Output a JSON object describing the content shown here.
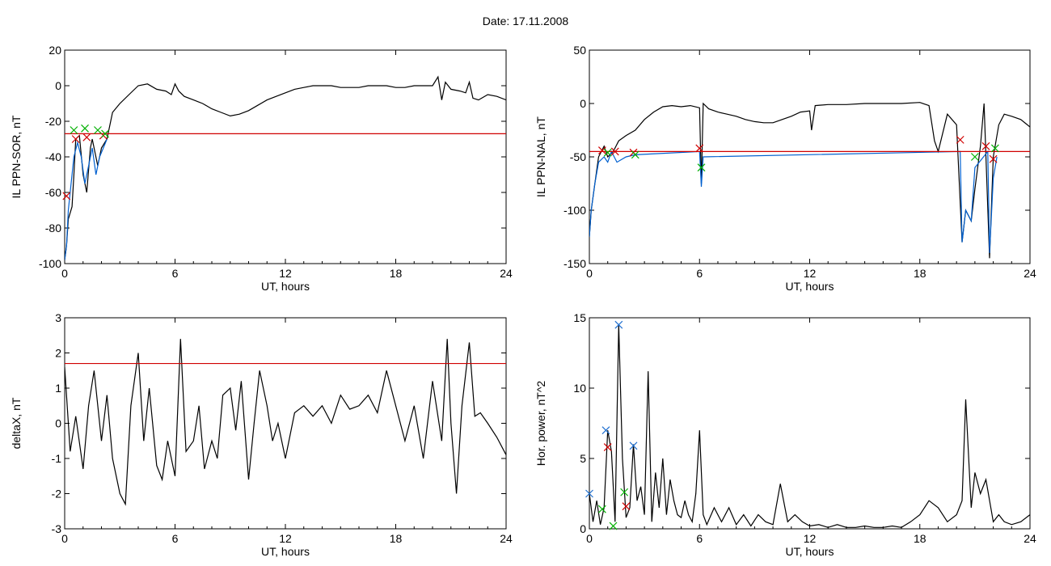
{
  "page": {
    "title": "Date:  17.11.2008"
  },
  "chart_data": [
    {
      "type": "line",
      "xlabel": "UT, hours",
      "ylabel": "IL PPN-SOR, nT",
      "xlim": [
        0,
        24
      ],
      "ylim": [
        -100,
        20
      ],
      "xticks": [
        0,
        6,
        12,
        18,
        24
      ],
      "yticks": [
        -100,
        -80,
        -60,
        -40,
        -20,
        0,
        20
      ],
      "threshold": -27,
      "series": [
        {
          "color": "#000000",
          "x": [
            0,
            0.1,
            0.2,
            0.4,
            0.5,
            0.6,
            0.8,
            1.0,
            1.2,
            1.4,
            1.5,
            1.8,
            2.0,
            2.3,
            2.6,
            3.0,
            3.5,
            4.0,
            4.5,
            5.0,
            5.5,
            5.8,
            6.0,
            6.2,
            6.5,
            7.0,
            7.5,
            8.0,
            8.5,
            9.0,
            9.5,
            10.0,
            10.5,
            11.0,
            11.5,
            12.0,
            12.5,
            13.0,
            13.5,
            14.0,
            14.5,
            15.0,
            15.5,
            16.0,
            16.5,
            17.0,
            17.5,
            18.0,
            18.5,
            19.0,
            19.5,
            20.0,
            20.3,
            20.5,
            20.7,
            21.0,
            21.5,
            21.8,
            22.0,
            22.2,
            22.5,
            23.0,
            23.5,
            24.0
          ],
          "y": [
            -98,
            -90,
            -75,
            -68,
            -50,
            -30,
            -28,
            -50,
            -60,
            -35,
            -30,
            -45,
            -35,
            -30,
            -15,
            -10,
            -5,
            0,
            1,
            -2,
            -3,
            -5,
            1,
            -3,
            -6,
            -8,
            -10,
            -13,
            -15,
            -17,
            -16,
            -14,
            -11,
            -8,
            -6,
            -4,
            -2,
            -1,
            0,
            0,
            0,
            -1,
            -1,
            -1,
            0,
            0,
            0,
            -1,
            -1,
            0,
            0,
            0,
            5,
            -8,
            2,
            -2,
            -3,
            -4,
            2,
            -7,
            -8,
            -5,
            -6,
            -8
          ]
        },
        {
          "color": "#0060d0",
          "x": [
            0,
            0.1,
            0.2,
            0.3,
            0.5,
            0.7,
            0.9,
            1.1,
            1.3,
            1.5,
            1.7,
            1.9,
            2.1,
            2.3
          ],
          "y": [
            -98,
            -90,
            -70,
            -60,
            -40,
            -32,
            -40,
            -55,
            -45,
            -35,
            -50,
            -40,
            -35,
            -30
          ]
        }
      ],
      "markers_red": [
        {
          "x": 0.6,
          "y": -30
        },
        {
          "x": 1.2,
          "y": -29
        },
        {
          "x": 2.1,
          "y": -28
        },
        {
          "x": 0.1,
          "y": -62
        }
      ],
      "markers_green": [
        {
          "x": 0.5,
          "y": -25
        },
        {
          "x": 1.1,
          "y": -24
        },
        {
          "x": 1.8,
          "y": -25
        },
        {
          "x": 2.2,
          "y": -27
        }
      ]
    },
    {
      "type": "line",
      "xlabel": "UT, hours",
      "ylabel": "IL PPN-NAL, nT",
      "xlim": [
        0,
        24
      ],
      "ylim": [
        -150,
        50
      ],
      "xticks": [
        0,
        6,
        12,
        18,
        24
      ],
      "yticks": [
        -150,
        -100,
        -50,
        0,
        50
      ],
      "threshold": -45,
      "series": [
        {
          "color": "#000000",
          "x": [
            0,
            0.1,
            0.3,
            0.5,
            0.8,
            1.0,
            1.3,
            1.6,
            2.0,
            2.5,
            3.0,
            3.5,
            4.0,
            4.5,
            5.0,
            5.5,
            6.0,
            6.1,
            6.2,
            6.5,
            7.0,
            7.5,
            8.0,
            8.5,
            9.0,
            9.5,
            10.0,
            10.5,
            11.0,
            11.5,
            12.0,
            12.1,
            12.3,
            13.0,
            14.0,
            15.0,
            16.0,
            17.0,
            18.0,
            18.5,
            18.8,
            19.0,
            19.5,
            20.0,
            20.3,
            20.5,
            20.8,
            21.0,
            21.3,
            21.5,
            21.8,
            22.0,
            22.3,
            22.6,
            23.0,
            23.5,
            24.0
          ],
          "y": [
            -125,
            -100,
            -75,
            -50,
            -40,
            -50,
            -45,
            -35,
            -30,
            -25,
            -15,
            -8,
            -3,
            -2,
            -3,
            -2,
            -4,
            -75,
            0,
            -5,
            -8,
            -10,
            -12,
            -15,
            -17,
            -18,
            -18,
            -15,
            -12,
            -8,
            -7,
            -25,
            -2,
            -1,
            -1,
            0,
            0,
            0,
            1,
            -2,
            -35,
            -45,
            -10,
            -20,
            -130,
            -100,
            -110,
            -80,
            -40,
            0,
            -145,
            -50,
            -20,
            -10,
            -12,
            -15,
            -22
          ]
        },
        {
          "color": "#0060d0",
          "x": [
            0,
            0.1,
            0.3,
            0.5,
            0.8,
            1.0,
            1.2,
            1.5,
            2.0,
            2.5,
            6.0,
            6.1,
            6.2,
            20.2,
            20.3,
            20.5,
            20.8,
            21.0,
            21.7,
            21.8,
            22.0,
            22.2
          ],
          "y": [
            -125,
            -100,
            -75,
            -55,
            -50,
            -55,
            -45,
            -55,
            -50,
            -48,
            -45,
            -78,
            -50,
            -45,
            -130,
            -100,
            -110,
            -60,
            -45,
            -140,
            -70,
            -50
          ]
        }
      ],
      "markers_red": [
        {
          "x": 0.7,
          "y": -44
        },
        {
          "x": 1.4,
          "y": -45
        },
        {
          "x": 2.4,
          "y": -46
        },
        {
          "x": 6.0,
          "y": -42
        },
        {
          "x": 20.2,
          "y": -34
        },
        {
          "x": 21.6,
          "y": -40
        },
        {
          "x": 22.0,
          "y": -52
        }
      ],
      "markers_green": [
        {
          "x": 1.0,
          "y": -46
        },
        {
          "x": 2.5,
          "y": -48
        },
        {
          "x": 6.1,
          "y": -60
        },
        {
          "x": 21.0,
          "y": -50
        },
        {
          "x": 22.1,
          "y": -42
        }
      ]
    },
    {
      "type": "line",
      "xlabel": "UT, hours",
      "ylabel": "deltaX, nT",
      "xlim": [
        0,
        24
      ],
      "ylim": [
        -3,
        3
      ],
      "xticks": [
        0,
        6,
        12,
        18,
        24
      ],
      "yticks": [
        -3,
        -2,
        -1,
        0,
        1,
        2,
        3
      ],
      "threshold": 1.7,
      "series": [
        {
          "color": "#000000",
          "x": [
            0,
            0.3,
            0.6,
            1.0,
            1.3,
            1.6,
            2.0,
            2.3,
            2.6,
            3.0,
            3.3,
            3.6,
            4.0,
            4.3,
            4.6,
            5.0,
            5.3,
            5.6,
            6.0,
            6.3,
            6.6,
            7.0,
            7.3,
            7.6,
            8.0,
            8.3,
            8.6,
            9.0,
            9.3,
            9.6,
            10.0,
            10.3,
            10.6,
            11.0,
            11.3,
            11.6,
            12.0,
            12.5,
            13.0,
            13.5,
            14.0,
            14.5,
            15.0,
            15.5,
            16.0,
            16.5,
            17.0,
            17.5,
            18.0,
            18.5,
            19.0,
            19.5,
            20.0,
            20.5,
            20.8,
            21.0,
            21.3,
            21.6,
            22.0,
            22.3,
            22.6,
            23.0,
            23.5,
            24.0
          ],
          "y": [
            1.6,
            -0.8,
            0.2,
            -1.3,
            0.5,
            1.5,
            -0.5,
            0.8,
            -1.0,
            -2.0,
            -2.3,
            0.5,
            2.0,
            -0.5,
            1.0,
            -1.2,
            -1.6,
            -0.5,
            -1.5,
            2.4,
            -0.8,
            -0.5,
            0.5,
            -1.3,
            -0.5,
            -1.0,
            0.8,
            1.0,
            -0.2,
            1.2,
            -1.6,
            0.0,
            1.5,
            0.5,
            -0.5,
            0.0,
            -1.0,
            0.3,
            0.5,
            0.2,
            0.5,
            0.0,
            0.8,
            0.4,
            0.5,
            0.8,
            0.3,
            1.5,
            0.5,
            -0.5,
            0.5,
            -1.0,
            1.2,
            -0.5,
            2.4,
            0.0,
            -2.0,
            0.5,
            2.3,
            0.2,
            0.3,
            0.0,
            -0.4,
            -0.9
          ]
        }
      ],
      "markers_red": [],
      "markers_green": []
    },
    {
      "type": "line",
      "xlabel": "UT, hours",
      "ylabel": "Hor. power, nT^2",
      "xlim": [
        0,
        24
      ],
      "ylim": [
        0,
        15
      ],
      "xticks": [
        0,
        6,
        12,
        18,
        24
      ],
      "yticks": [
        0,
        5,
        10,
        15
      ],
      "threshold": null,
      "series": [
        {
          "color": "#000000",
          "x": [
            0,
            0.2,
            0.4,
            0.6,
            0.8,
            1.0,
            1.2,
            1.4,
            1.6,
            1.8,
            2.0,
            2.2,
            2.4,
            2.6,
            2.8,
            3.0,
            3.2,
            3.4,
            3.6,
            3.8,
            4.0,
            4.2,
            4.4,
            4.6,
            4.8,
            5.0,
            5.2,
            5.4,
            5.6,
            5.8,
            6.0,
            6.2,
            6.4,
            6.8,
            7.2,
            7.6,
            8.0,
            8.4,
            8.8,
            9.2,
            9.6,
            10.0,
            10.4,
            10.8,
            11.2,
            11.6,
            12.0,
            12.5,
            13.0,
            13.5,
            14.0,
            14.5,
            15.0,
            15.5,
            16.0,
            16.5,
            17.0,
            17.5,
            18.0,
            18.5,
            19.0,
            19.5,
            20.0,
            20.3,
            20.5,
            20.8,
            21.0,
            21.3,
            21.6,
            22.0,
            22.3,
            22.6,
            23.0,
            23.5,
            24.0
          ],
          "y": [
            2.5,
            0.5,
            2.0,
            0.3,
            1.5,
            7.0,
            5.5,
            0.5,
            14.5,
            5.0,
            0.8,
            1.5,
            6.0,
            2.0,
            3.0,
            1.0,
            11.2,
            0.5,
            4.0,
            1.5,
            5.0,
            1.0,
            3.5,
            2.0,
            1.0,
            0.8,
            2.0,
            1.0,
            0.5,
            2.5,
            7.0,
            1.0,
            0.3,
            1.5,
            0.5,
            1.5,
            0.3,
            1.0,
            0.2,
            1.0,
            0.5,
            0.3,
            3.2,
            0.5,
            1.0,
            0.5,
            0.2,
            0.3,
            0.1,
            0.3,
            0.1,
            0.1,
            0.2,
            0.1,
            0.1,
            0.2,
            0.1,
            0.5,
            1.0,
            2.0,
            1.5,
            0.5,
            1.0,
            2.0,
            9.2,
            1.5,
            4.0,
            2.5,
            3.5,
            0.5,
            1.0,
            0.5,
            0.3,
            0.5,
            1.0
          ]
        }
      ],
      "markers_red": [
        {
          "x": 1.0,
          "y": 5.8
        },
        {
          "x": 2.0,
          "y": 1.6
        }
      ],
      "markers_green": [
        {
          "x": 0.7,
          "y": 1.4
        },
        {
          "x": 1.3,
          "y": 0.2
        },
        {
          "x": 1.9,
          "y": 2.6
        }
      ],
      "markers_blue": [
        {
          "x": 0.9,
          "y": 7.0
        },
        {
          "x": 1.6,
          "y": 14.5
        },
        {
          "x": 2.4,
          "y": 5.9
        },
        {
          "x": 0.0,
          "y": 2.5
        }
      ]
    }
  ]
}
